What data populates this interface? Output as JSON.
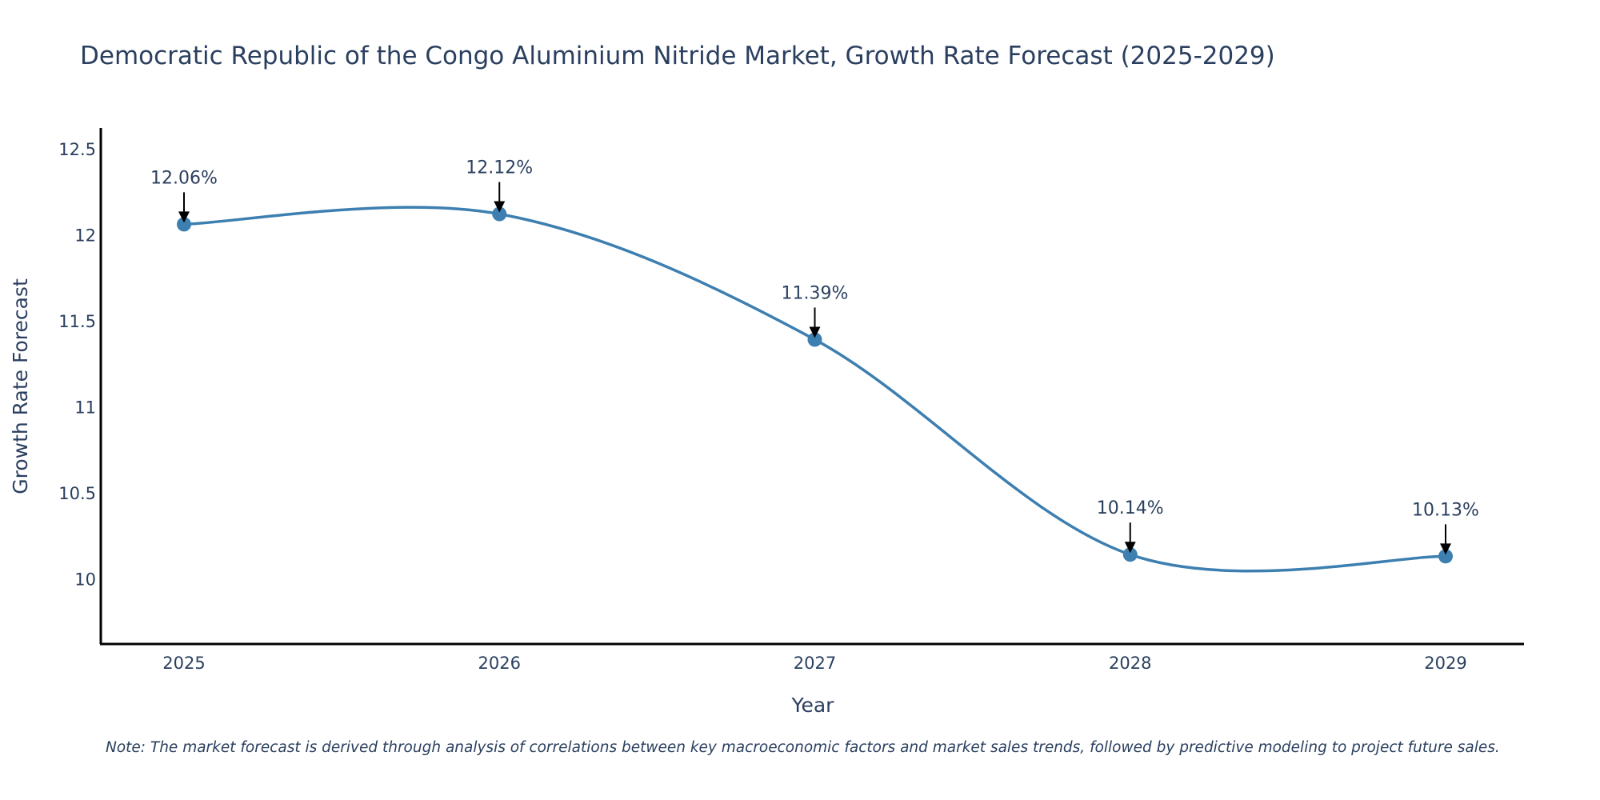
{
  "chart_data": {
    "type": "line",
    "title": "Democratic Republic of the Congo Aluminium Nitride Market, Growth Rate Forecast (2025-2029)",
    "xlabel": "Year",
    "ylabel": "Growth Rate Forecast",
    "categories": [
      "2025",
      "2026",
      "2027",
      "2028",
      "2029"
    ],
    "values": [
      12.06,
      12.12,
      11.39,
      10.14,
      10.13
    ],
    "data_labels": [
      "12.06%",
      "12.12%",
      "11.39%",
      "10.14%",
      "10.13%"
    ],
    "ylim": [
      9.62,
      12.62
    ],
    "yticks": [
      10,
      10.5,
      11,
      11.5,
      12,
      12.5
    ],
    "ytick_labels": [
      "10",
      "10.5",
      "11",
      "11.5",
      "12",
      "12.5"
    ],
    "grid": false,
    "line_shape": "spline",
    "line_color": "#3d7fb0",
    "marker_color": "#3d7fb0",
    "note": "Note: The market forecast is derived through analysis of correlations between key macroeconomic factors and market sales trends, followed by predictive modeling to project future sales."
  }
}
